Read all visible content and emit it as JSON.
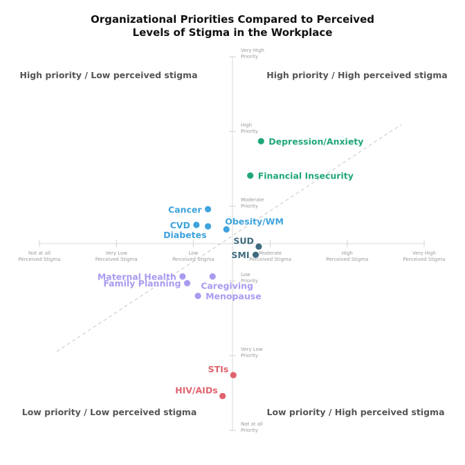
{
  "chart_data": {
    "type": "scatter",
    "title": [
      "Organizational Priorities Compared to Perceived",
      "Levels of Stigma in the Workplace"
    ],
    "x_ticks": [
      [
        "Not at all",
        "Perceived Stigma"
      ],
      [
        "Very Low",
        "Perceived Stigma"
      ],
      [
        "Low",
        "Perceived Stigma"
      ],
      [
        "Moderate",
        "Perceived Stigma"
      ],
      [
        "High",
        "Perceived Stigma"
      ],
      [
        "Very High",
        "Perceived Stigma"
      ]
    ],
    "y_ticks": [
      [
        "Not at all",
        "Priority"
      ],
      [
        "Very Low",
        "Priority"
      ],
      [
        "Low",
        "Priority"
      ],
      [
        "Moderate",
        "Priority"
      ],
      [
        "High",
        "Priority"
      ],
      [
        "Very High",
        "Priority"
      ]
    ],
    "xlim": [
      0,
      5
    ],
    "ylim": [
      0,
      5
    ],
    "quadrant_labels": {
      "top_left": "High priority / Low perceived stigma",
      "top_right": "High priority / High perceived stigma",
      "bottom_left": "Low priority / Low perceived stigma",
      "bottom_right": "Low priority / High perceived stigma"
    },
    "colors": {
      "green": "#21a67a",
      "blue": "#3fa3dc",
      "slate": "#3f6a7e",
      "purple": "#a79cf0",
      "red": "#e0636e"
    },
    "points": [
      {
        "label": "Depression/Anxiety",
        "x": 2.88,
        "y": 3.87,
        "color": "green",
        "label_side": "right"
      },
      {
        "label": "Financial Insecurity",
        "x": 2.74,
        "y": 3.41,
        "color": "green",
        "label_side": "right"
      },
      {
        "label": "Cancer",
        "x": 2.19,
        "y": 2.96,
        "color": "blue",
        "label_side": "left"
      },
      {
        "label": "CVD",
        "x": 2.04,
        "y": 2.75,
        "color": "blue",
        "label_side": "left"
      },
      {
        "label": "Diabetes",
        "x": 2.19,
        "y": 2.73,
        "color": "blue",
        "label_side": "left-below"
      },
      {
        "label": "Obesity/WM",
        "x": 2.43,
        "y": 2.69,
        "color": "blue",
        "label_side": "right-above"
      },
      {
        "label": "SUD",
        "x": 2.85,
        "y": 2.46,
        "color": "slate",
        "label_side": "left-above"
      },
      {
        "label": "SMI",
        "x": 2.81,
        "y": 2.35,
        "color": "slate",
        "label_side": "left"
      },
      {
        "label": "Maternal Health",
        "x": 1.86,
        "y": 2.06,
        "color": "purple",
        "label_side": "left"
      },
      {
        "label": "Family Planning",
        "x": 1.92,
        "y": 1.97,
        "color": "purple",
        "label_side": "left"
      },
      {
        "label": "Caregiving",
        "x": 2.25,
        "y": 2.06,
        "color": "purple",
        "label_side": "right-below"
      },
      {
        "label": "Menopause",
        "x": 2.06,
        "y": 1.8,
        "color": "purple",
        "label_side": "right"
      },
      {
        "label": "STIs",
        "x": 2.52,
        "y": 0.74,
        "color": "red",
        "label_side": "left-above"
      },
      {
        "label": "HIV/AIDs",
        "x": 2.38,
        "y": 0.46,
        "color": "red",
        "label_side": "left-above"
      }
    ]
  }
}
